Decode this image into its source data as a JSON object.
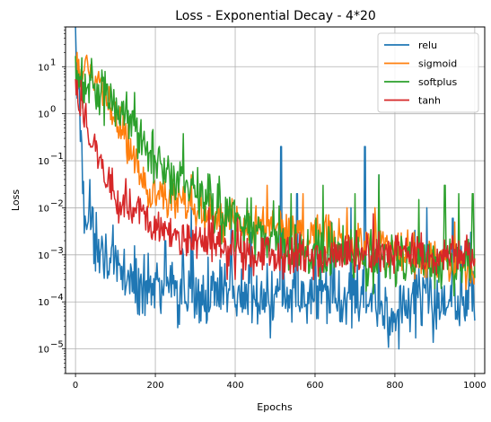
{
  "chart_data": {
    "type": "line",
    "title": "Loss - Exponential Decay - 4*20",
    "xlabel": "Epochs",
    "ylabel": "Loss",
    "xlim": [
      -25,
      1025
    ],
    "ylim": [
      3e-06,
      70
    ],
    "yscale": "log",
    "grid": true,
    "legend_position": "top-right",
    "x_ticks": [
      0,
      200,
      400,
      600,
      800,
      1000
    ],
    "x_tick_labels": [
      "0",
      "200",
      "400",
      "600",
      "800",
      "1000"
    ],
    "y_ticks": [
      1e-05,
      0.0001,
      0.001,
      0.01,
      0.1,
      1,
      10
    ],
    "y_tick_labels": [
      "10",
      "10",
      "10",
      "10",
      "10",
      "10",
      "10"
    ],
    "y_tick_exponents": [
      "−5",
      "−4",
      "−3",
      "−2",
      "−1",
      "0",
      "1"
    ],
    "series": [
      {
        "name": "relu",
        "color": "#1f77b4",
        "x": [
          0,
          5,
          10,
          15,
          20,
          25,
          30,
          40,
          50,
          60,
          70,
          80,
          100,
          120,
          150,
          200,
          250,
          300,
          350,
          400,
          450,
          500,
          550,
          600,
          650,
          700,
          750,
          800,
          850,
          900,
          950,
          1000
        ],
        "y": [
          25,
          5,
          2,
          0.2,
          0.03,
          0.008,
          0.005,
          0.003,
          0.0025,
          0.0015,
          0.0012,
          0.001,
          0.0004,
          0.0003,
          0.00025,
          0.00025,
          0.00015,
          0.00015,
          0.00012,
          0.00012,
          0.00012,
          0.00012,
          0.0001,
          0.00012,
          0.00012,
          0.00015,
          0.0001,
          5e-05,
          0.00012,
          0.0001,
          0.00015,
          0.00015
        ],
        "noise": 0.35,
        "spike_x": [
          225,
          290,
          390,
          440,
          515,
          555,
          600,
          640,
          690,
          725,
          760,
          810,
          880,
          945,
          990
        ],
        "spike_y": [
          0.002,
          0.01,
          0.005,
          0.003,
          0.2,
          0.02,
          0.005,
          0.005,
          0.01,
          0.2,
          0.05,
          1e-05,
          0.01,
          0.006,
          0.003
        ]
      },
      {
        "name": "sigmoid",
        "color": "#ff7f0e",
        "x": [
          0,
          10,
          20,
          30,
          40,
          50,
          60,
          70,
          80,
          90,
          100,
          110,
          120,
          130,
          140,
          150,
          160,
          170,
          180,
          200,
          220,
          250,
          280,
          300,
          320,
          350,
          380,
          400,
          450,
          500,
          550,
          600,
          650,
          700,
          750,
          800,
          850,
          900,
          950,
          1000
        ],
        "y": [
          10,
          8,
          7,
          9,
          6,
          5,
          4,
          3,
          2,
          1.5,
          1,
          0.6,
          0.4,
          0.25,
          0.18,
          0.12,
          0.07,
          0.04,
          0.03,
          0.02,
          0.015,
          0.012,
          0.01,
          0.009,
          0.008,
          0.007,
          0.006,
          0.005,
          0.004,
          0.0035,
          0.003,
          0.0025,
          0.002,
          0.0015,
          0.0015,
          0.0012,
          0.001,
          0.0008,
          0.0006,
          0.0005
        ],
        "noise": 0.22,
        "spike_x": [
          290,
          480,
          570,
          680,
          750,
          950
        ],
        "spike_y": [
          0.05,
          0.03,
          0.02,
          0.01,
          0.01,
          0.005
        ]
      },
      {
        "name": "softplus",
        "color": "#2ca02c",
        "x": [
          0,
          10,
          20,
          30,
          40,
          50,
          60,
          70,
          80,
          90,
          100,
          120,
          140,
          160,
          180,
          200,
          220,
          240,
          260,
          280,
          300,
          330,
          360,
          380,
          400,
          450,
          500,
          550,
          600,
          650,
          700,
          750,
          800,
          850,
          900,
          950,
          1000
        ],
        "y": [
          6,
          5,
          4,
          5,
          5,
          4,
          3.5,
          3,
          2.5,
          2,
          1.5,
          1,
          0.6,
          0.35,
          0.2,
          0.12,
          0.08,
          0.05,
          0.035,
          0.025,
          0.02,
          0.012,
          0.008,
          0.006,
          0.005,
          0.003,
          0.002,
          0.0015,
          0.0012,
          0.001,
          0.0009,
          0.0008,
          0.0007,
          0.0007,
          0.0006,
          0.0006,
          0.0005
        ],
        "noise": 0.3,
        "spike_x": [
          540,
          620,
          700,
          760,
          860,
          925,
          960,
          995
        ],
        "spike_y": [
          0.02,
          0.03,
          0.02,
          0.05,
          0.015,
          0.03,
          0.02,
          0.02
        ]
      },
      {
        "name": "tanh",
        "color": "#d62728",
        "x": [
          0,
          5,
          10,
          15,
          20,
          25,
          30,
          40,
          50,
          60,
          70,
          80,
          100,
          120,
          150,
          180,
          200,
          250,
          300,
          350,
          400,
          450,
          500,
          550,
          600,
          650,
          700,
          750,
          800,
          850,
          900,
          950,
          1000
        ],
        "y": [
          4,
          2,
          1,
          2,
          0.6,
          1.2,
          0.4,
          0.3,
          0.2,
          0.12,
          0.06,
          0.03,
          0.015,
          0.011,
          0.008,
          0.006,
          0.005,
          0.003,
          0.002,
          0.0015,
          0.0012,
          0.0012,
          0.001,
          0.001,
          0.001,
          0.001,
          0.001,
          0.001,
          0.001,
          0.001,
          0.001,
          0.001,
          0.0009
        ],
        "noise": 0.22,
        "spike_x": [
          380,
          400,
          420
        ],
        "spike_y": [
          0.0003,
          0.0003,
          0.0003
        ]
      }
    ]
  }
}
